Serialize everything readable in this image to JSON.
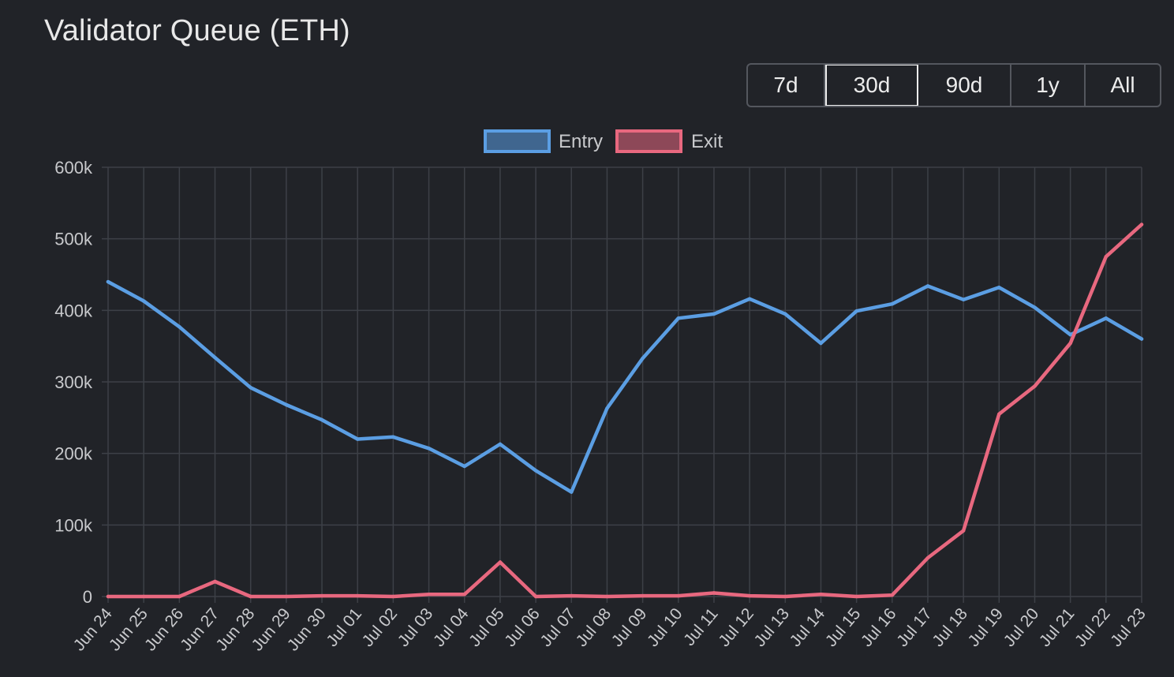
{
  "header": {
    "title": "Validator Queue (ETH)"
  },
  "range_selector": {
    "options": [
      "7d",
      "30d",
      "90d",
      "1y",
      "All"
    ],
    "active": "30d"
  },
  "colors": {
    "background": "#212328",
    "grid": "#3d4047",
    "text": "#c8c9cc",
    "entry": "#5b9ee3",
    "exit": "#e8687f"
  },
  "chart_data": {
    "type": "line",
    "title": "Validator Queue (ETH)",
    "xlabel": "",
    "ylabel": "",
    "ylim": [
      0,
      600000
    ],
    "yticks": [
      {
        "value": 0,
        "label": "0"
      },
      {
        "value": 100000,
        "label": "100k"
      },
      {
        "value": 200000,
        "label": "200k"
      },
      {
        "value": 300000,
        "label": "300k"
      },
      {
        "value": 400000,
        "label": "400k"
      },
      {
        "value": 500000,
        "label": "500k"
      },
      {
        "value": 600000,
        "label": "600k"
      }
    ],
    "grid": true,
    "legend_position": "top-center",
    "categories": [
      "Jun 24",
      "Jun 25",
      "Jun 26",
      "Jun 27",
      "Jun 28",
      "Jun 29",
      "Jun 30",
      "Jul 01",
      "Jul 02",
      "Jul 03",
      "Jul 04",
      "Jul 05",
      "Jul 06",
      "Jul 07",
      "Jul 08",
      "Jul 09",
      "Jul 10",
      "Jul 11",
      "Jul 12",
      "Jul 13",
      "Jul 14",
      "Jul 15",
      "Jul 16",
      "Jul 17",
      "Jul 18",
      "Jul 19",
      "Jul 20",
      "Jul 21",
      "Jul 22",
      "Jul 23"
    ],
    "series": [
      {
        "name": "Entry",
        "color": "#5b9ee3",
        "values": [
          440000,
          413000,
          377000,
          334000,
          292000,
          268000,
          247000,
          220000,
          223000,
          207000,
          182000,
          213000,
          176000,
          146000,
          263000,
          333000,
          389000,
          395000,
          416000,
          395000,
          354000,
          399000,
          409000,
          434000,
          415000,
          432000,
          404000,
          366000,
          389000,
          360000
        ]
      },
      {
        "name": "Exit",
        "color": "#e8687f",
        "values": [
          0,
          0,
          0,
          21000,
          0,
          0,
          1000,
          1000,
          0,
          3000,
          3000,
          48000,
          0,
          1000,
          0,
          1000,
          1000,
          5000,
          1000,
          0,
          3000,
          0,
          2000,
          54000,
          92000,
          255000,
          294000,
          354000,
          475000,
          520000
        ]
      }
    ]
  }
}
